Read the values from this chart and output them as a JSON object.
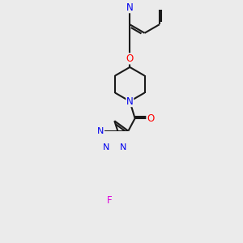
{
  "bg_color": "#ebebeb",
  "bond_color": "#1a1a1a",
  "bond_width": 1.5,
  "atom_colors": {
    "N": "#0000ee",
    "O": "#ff0000",
    "F": "#dd00dd",
    "C": "#1a1a1a"
  },
  "font_size_atom": 8.5
}
